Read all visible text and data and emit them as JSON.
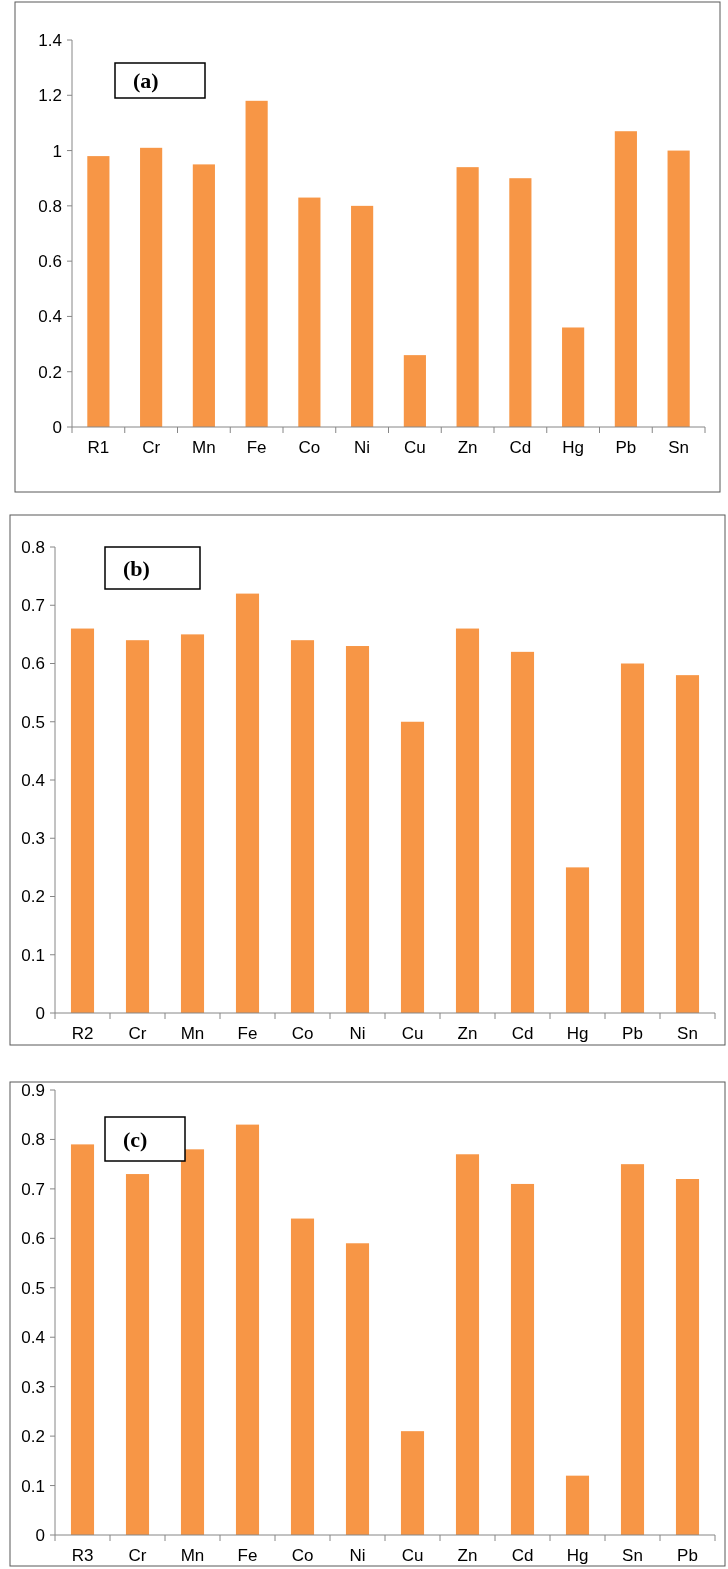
{
  "chart_data": [
    {
      "type": "bar",
      "annotations": [
        "(a)"
      ],
      "categories": [
        "R1",
        "Cr",
        "Mn",
        "Fe",
        "Co",
        "Ni",
        "Cu",
        "Zn",
        "Cd",
        "Hg",
        "Pb",
        "Sn"
      ],
      "values": [
        0.98,
        1.01,
        0.95,
        1.18,
        0.83,
        0.8,
        0.26,
        0.94,
        0.9,
        0.36,
        1.07,
        1.0
      ],
      "color": "#f79646",
      "ylim": [
        0,
        1.4
      ],
      "yticks": [
        0,
        0.2,
        0.4,
        0.6,
        0.8,
        1,
        1.2,
        1.4
      ],
      "grid": false
    },
    {
      "type": "bar",
      "annotations": [
        "(b)"
      ],
      "categories": [
        "R2",
        "Cr",
        "Mn",
        "Fe",
        "Co",
        "Ni",
        "Cu",
        "Zn",
        "Cd",
        "Hg",
        "Pb",
        "Sn"
      ],
      "values": [
        0.66,
        0.64,
        0.65,
        0.72,
        0.64,
        0.63,
        0.5,
        0.66,
        0.62,
        0.25,
        0.6,
        0.58
      ],
      "color": "#f79646",
      "ylim": [
        0,
        0.8
      ],
      "yticks": [
        0,
        0.1,
        0.2,
        0.3,
        0.4,
        0.5,
        0.6,
        0.7,
        0.8
      ],
      "grid": false
    },
    {
      "type": "bar",
      "annotations": [
        "(c)"
      ],
      "categories": [
        "R3",
        "Cr",
        "Mn",
        "Fe",
        "Co",
        "Ni",
        "Cu",
        "Zn",
        "Cd",
        "Hg",
        "Sn",
        "Pb"
      ],
      "values": [
        0.79,
        0.73,
        0.78,
        0.83,
        0.64,
        0.59,
        0.21,
        0.77,
        0.71,
        0.12,
        0.75,
        0.72
      ],
      "color": "#f79646",
      "ylim": [
        0,
        0.9
      ],
      "yticks": [
        0,
        0.1,
        0.2,
        0.3,
        0.4,
        0.5,
        0.6,
        0.7,
        0.8,
        0.9
      ],
      "grid": false
    }
  ]
}
